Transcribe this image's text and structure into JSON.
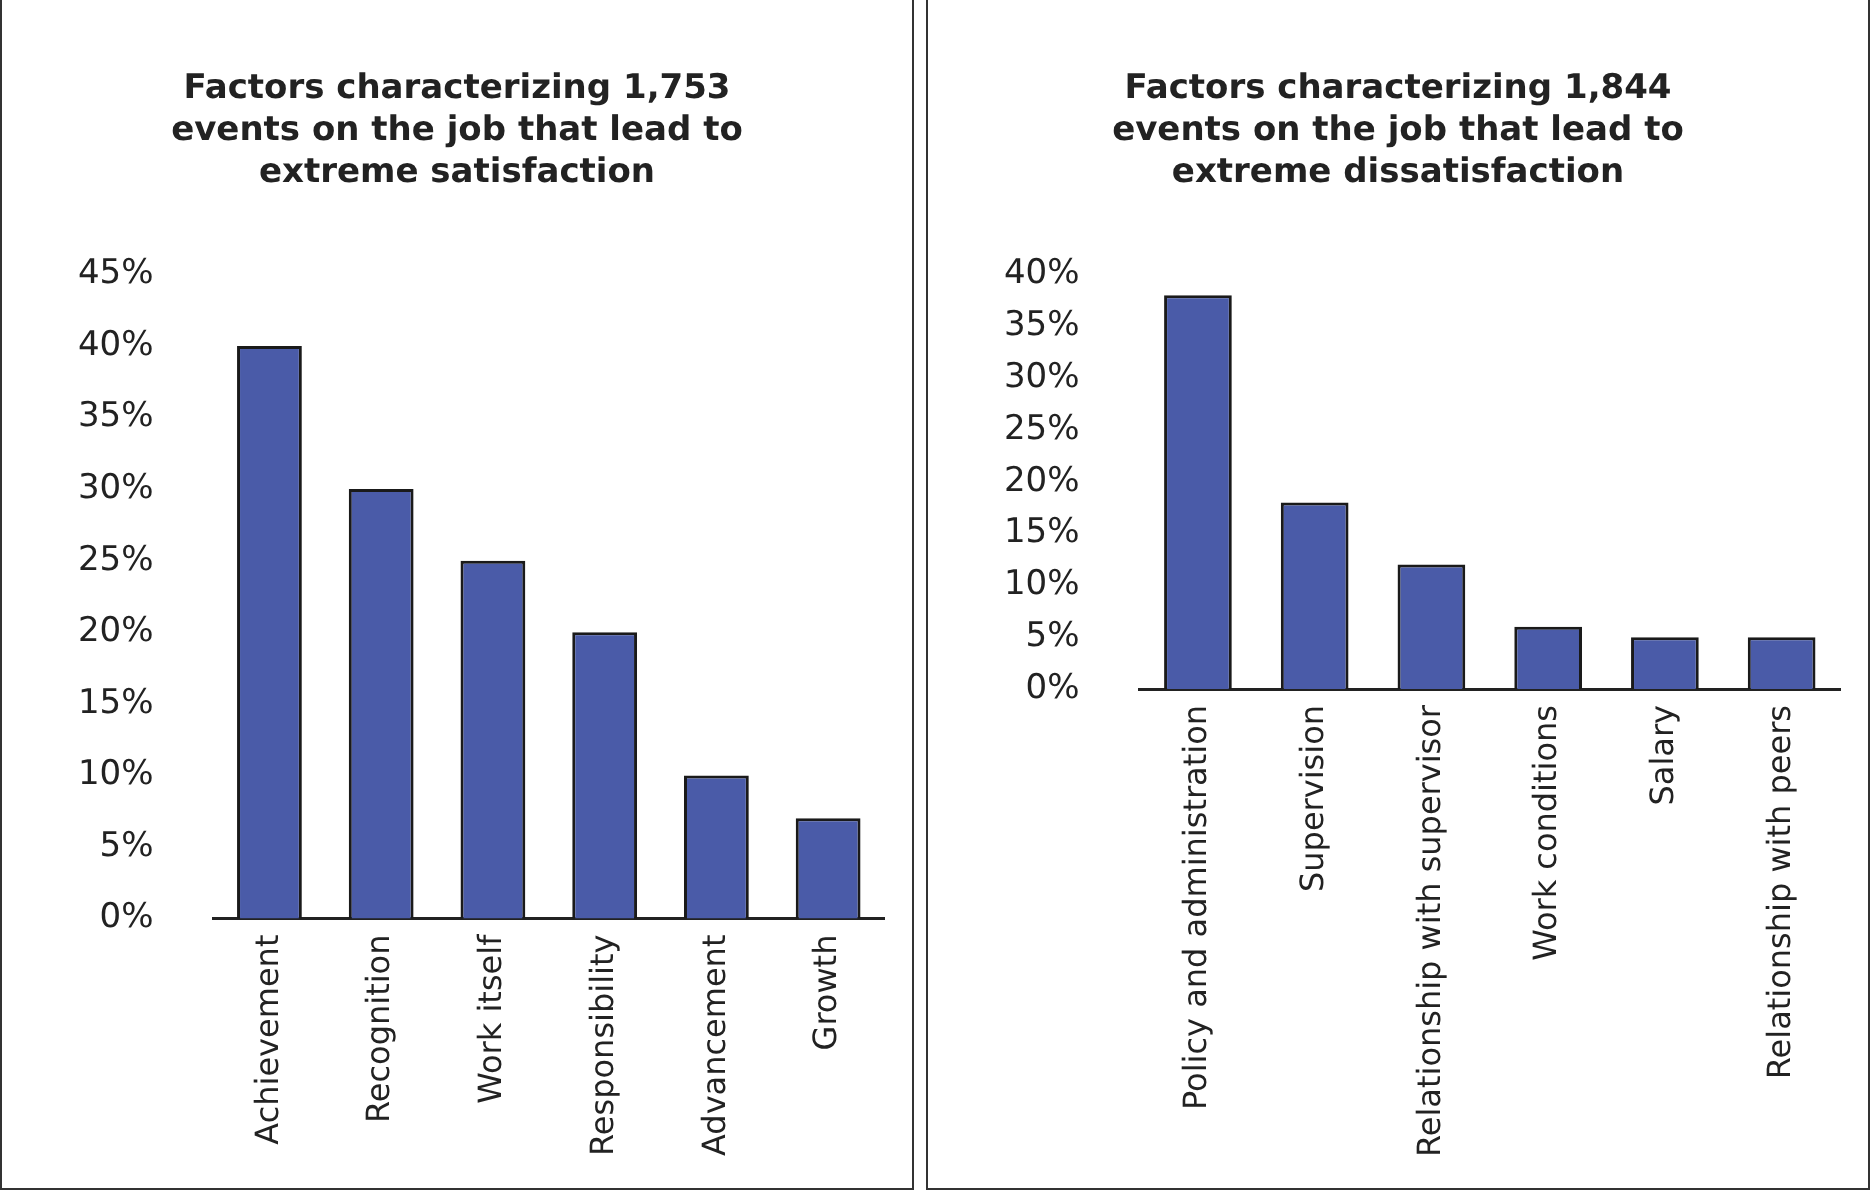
{
  "chart_data": [
    {
      "type": "bar",
      "title": "Factors characterizing 1,753 events on the job that lead to extreme satisfaction",
      "categories": [
        "Achievement",
        "Recognition",
        "Work itself",
        "Responsibility",
        "Advancement",
        "Growth"
      ],
      "values": [
        40,
        30,
        25,
        20,
        10,
        7
      ],
      "color": "#4a5ba8",
      "ylim": [
        0,
        45
      ],
      "yticks": [
        {
          "value": 0,
          "label": "0%"
        },
        {
          "value": 5,
          "label": "5%"
        },
        {
          "value": 10,
          "label": "10%"
        },
        {
          "value": 15,
          "label": "15%"
        },
        {
          "value": 20,
          "label": "20%"
        },
        {
          "value": 25,
          "label": "25%"
        },
        {
          "value": 30,
          "label": "30%"
        },
        {
          "value": 35,
          "label": "35%"
        },
        {
          "value": 40,
          "label": "40%"
        },
        {
          "value": 45,
          "label": "45%"
        }
      ],
      "grid": false
    },
    {
      "type": "bar",
      "title": "Factors characterizing 1,844 events on the job that lead to extreme dissatisfaction",
      "categories": [
        "Policy and administration",
        "Supervision",
        "Relationship with supervisor",
        "Work conditions",
        "Salary",
        "Relationship with peers"
      ],
      "values": [
        38,
        18,
        12,
        6,
        5,
        5
      ],
      "color": "#4a5ba8",
      "ylim": [
        0,
        40
      ],
      "yticks": [
        {
          "value": 0,
          "label": "0%"
        },
        {
          "value": 5,
          "label": "5%"
        },
        {
          "value": 10,
          "label": "10%"
        },
        {
          "value": 15,
          "label": "15%"
        },
        {
          "value": 20,
          "label": "20%"
        },
        {
          "value": 25,
          "label": "25%"
        },
        {
          "value": 30,
          "label": "30%"
        },
        {
          "value": 35,
          "label": "35%"
        },
        {
          "value": 40,
          "label": "40%"
        }
      ],
      "grid": false
    }
  ]
}
